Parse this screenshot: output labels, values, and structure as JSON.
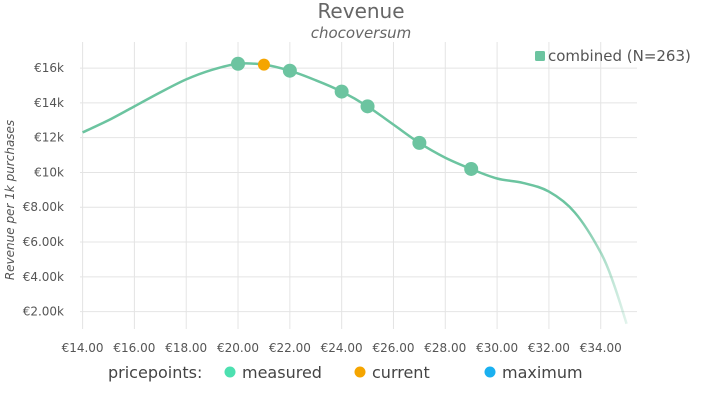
{
  "chart_data": {
    "type": "line",
    "title": "Revenue",
    "subtitle": "chocoversum",
    "ylabel": "Revenue per 1k purchases",
    "xlabel": "",
    "xlim": [
      13.9,
      35.4
    ],
    "ylim": [
      1000,
      17500
    ],
    "x_ticks": [
      14,
      16,
      18,
      20,
      22,
      24,
      26,
      28,
      30,
      32,
      34
    ],
    "x_tick_labels": [
      "€14.00",
      "€16.00",
      "€18.00",
      "€20.00",
      "€22.00",
      "€24.00",
      "€26.00",
      "€28.00",
      "€30.00",
      "€32.00",
      "€34.00"
    ],
    "y_ticks": [
      2000,
      4000,
      6000,
      8000,
      10000,
      12000,
      14000,
      16000
    ],
    "y_tick_labels": [
      "€2.00k",
      "€4.00k",
      "€6.00k",
      "€8.00k",
      "€10k",
      "€12k",
      "€14k",
      "€16k"
    ],
    "grid": true,
    "legend_position": "top-right",
    "series": [
      {
        "name": "combined (N=263)",
        "color": "#6cc4a0",
        "curve": [
          {
            "x": 14.0,
            "y": 12300
          },
          {
            "x": 15.0,
            "y": 13000
          },
          {
            "x": 16.0,
            "y": 13800
          },
          {
            "x": 17.0,
            "y": 14600
          },
          {
            "x": 18.0,
            "y": 15350
          },
          {
            "x": 19.0,
            "y": 15900
          },
          {
            "x": 20.0,
            "y": 16250
          },
          {
            "x": 21.0,
            "y": 16200
          },
          {
            "x": 22.0,
            "y": 15850
          },
          {
            "x": 23.0,
            "y": 15300
          },
          {
            "x": 24.0,
            "y": 14650
          },
          {
            "x": 25.0,
            "y": 13800
          },
          {
            "x": 26.0,
            "y": 12750
          },
          {
            "x": 27.0,
            "y": 11700
          },
          {
            "x": 28.0,
            "y": 10850
          },
          {
            "x": 29.0,
            "y": 10200
          },
          {
            "x": 30.0,
            "y": 9650
          },
          {
            "x": 31.0,
            "y": 9400
          },
          {
            "x": 32.0,
            "y": 8900
          },
          {
            "x": 33.0,
            "y": 7700
          },
          {
            "x": 34.0,
            "y": 5400
          },
          {
            "x": 34.5,
            "y": 3600
          },
          {
            "x": 35.0,
            "y": 1300
          }
        ],
        "measured_points": [
          {
            "x": 20.0,
            "y": 16250
          },
          {
            "x": 22.0,
            "y": 15850
          },
          {
            "x": 24.0,
            "y": 14650
          },
          {
            "x": 25.0,
            "y": 13800
          },
          {
            "x": 27.0,
            "y": 11700
          },
          {
            "x": 29.0,
            "y": 10200
          }
        ],
        "current_point": {
          "x": 21.0,
          "y": 16200
        }
      }
    ],
    "bottom_legend": {
      "label": "pricepoints:",
      "items": [
        {
          "name": "measured",
          "color": "#4de0b0"
        },
        {
          "name": "current",
          "color": "#f5a500"
        },
        {
          "name": "maximum",
          "color": "#1ab0f0"
        }
      ]
    },
    "colors": {
      "measured_marker": "#6cc4a0",
      "current_marker": "#f5a500"
    }
  }
}
